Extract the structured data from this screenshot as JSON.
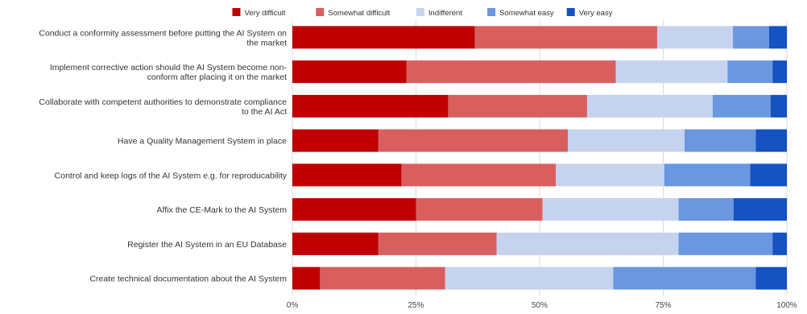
{
  "chart_data": {
    "type": "bar",
    "orientation": "horizontal",
    "stacked": "percent",
    "title": "",
    "xlabel": "",
    "ylabel": "",
    "xlim": [
      0,
      100
    ],
    "x_ticks": [
      "0%",
      "25%",
      "50%",
      "75%",
      "100%"
    ],
    "legend_position": "top",
    "categories": [
      "Conduct a conformity assessment before putting the AI System on the market",
      "Implement corrective action should the AI System become non-conform after placing it on the market",
      "Collaborate with competent authorities to demonstrate compliance to the AI Act",
      "Have a Quality Management System in place",
      "Control and keep logs of the AI System e.g. for reproducability",
      "Affix the CE-Mark to the AI System",
      "Register the AI System in an EU Database",
      "Create technical documentation about the AI System"
    ],
    "category_lines": [
      [
        "Conduct a conformity assessment before putting the AI System on",
        "the market"
      ],
      [
        "Implement corrective action should the AI System become non-",
        "conform after placing it on the market"
      ],
      [
        "Collaborate with competent authorities to demonstrate compliance",
        "to the AI Act"
      ],
      [
        "Have a Quality Management System in place"
      ],
      [
        "Control and keep logs of the AI System e.g. for reproducability"
      ],
      [
        "Affix the CE-Mark to the AI System"
      ],
      [
        "Register the AI System in an EU Database"
      ],
      [
        "Create technical documentation about the AI System"
      ]
    ],
    "series": [
      {
        "name": "Very difficult",
        "color": "#c00000",
        "values": [
          36.9,
          23.1,
          31.5,
          17.4,
          22.1,
          25.0,
          17.4,
          5.6
        ]
      },
      {
        "name": "Somewhat difficult",
        "color": "#d95f5f",
        "values": [
          36.9,
          42.3,
          28.1,
          38.3,
          31.2,
          25.6,
          23.9,
          25.3
        ]
      },
      {
        "name": "Indifferent",
        "color": "#c5d3ef",
        "values": [
          15.3,
          22.6,
          25.4,
          23.6,
          21.9,
          27.5,
          36.8,
          34.0
        ]
      },
      {
        "name": "Somewhat easy",
        "color": "#6a97e0",
        "values": [
          7.3,
          9.1,
          11.7,
          14.4,
          17.4,
          11.1,
          19.0,
          28.8
        ]
      },
      {
        "name": "Very easy",
        "color": "#1552c2",
        "values": [
          3.6,
          2.9,
          3.3,
          6.3,
          7.4,
          10.8,
          2.9,
          6.3
        ]
      }
    ]
  }
}
